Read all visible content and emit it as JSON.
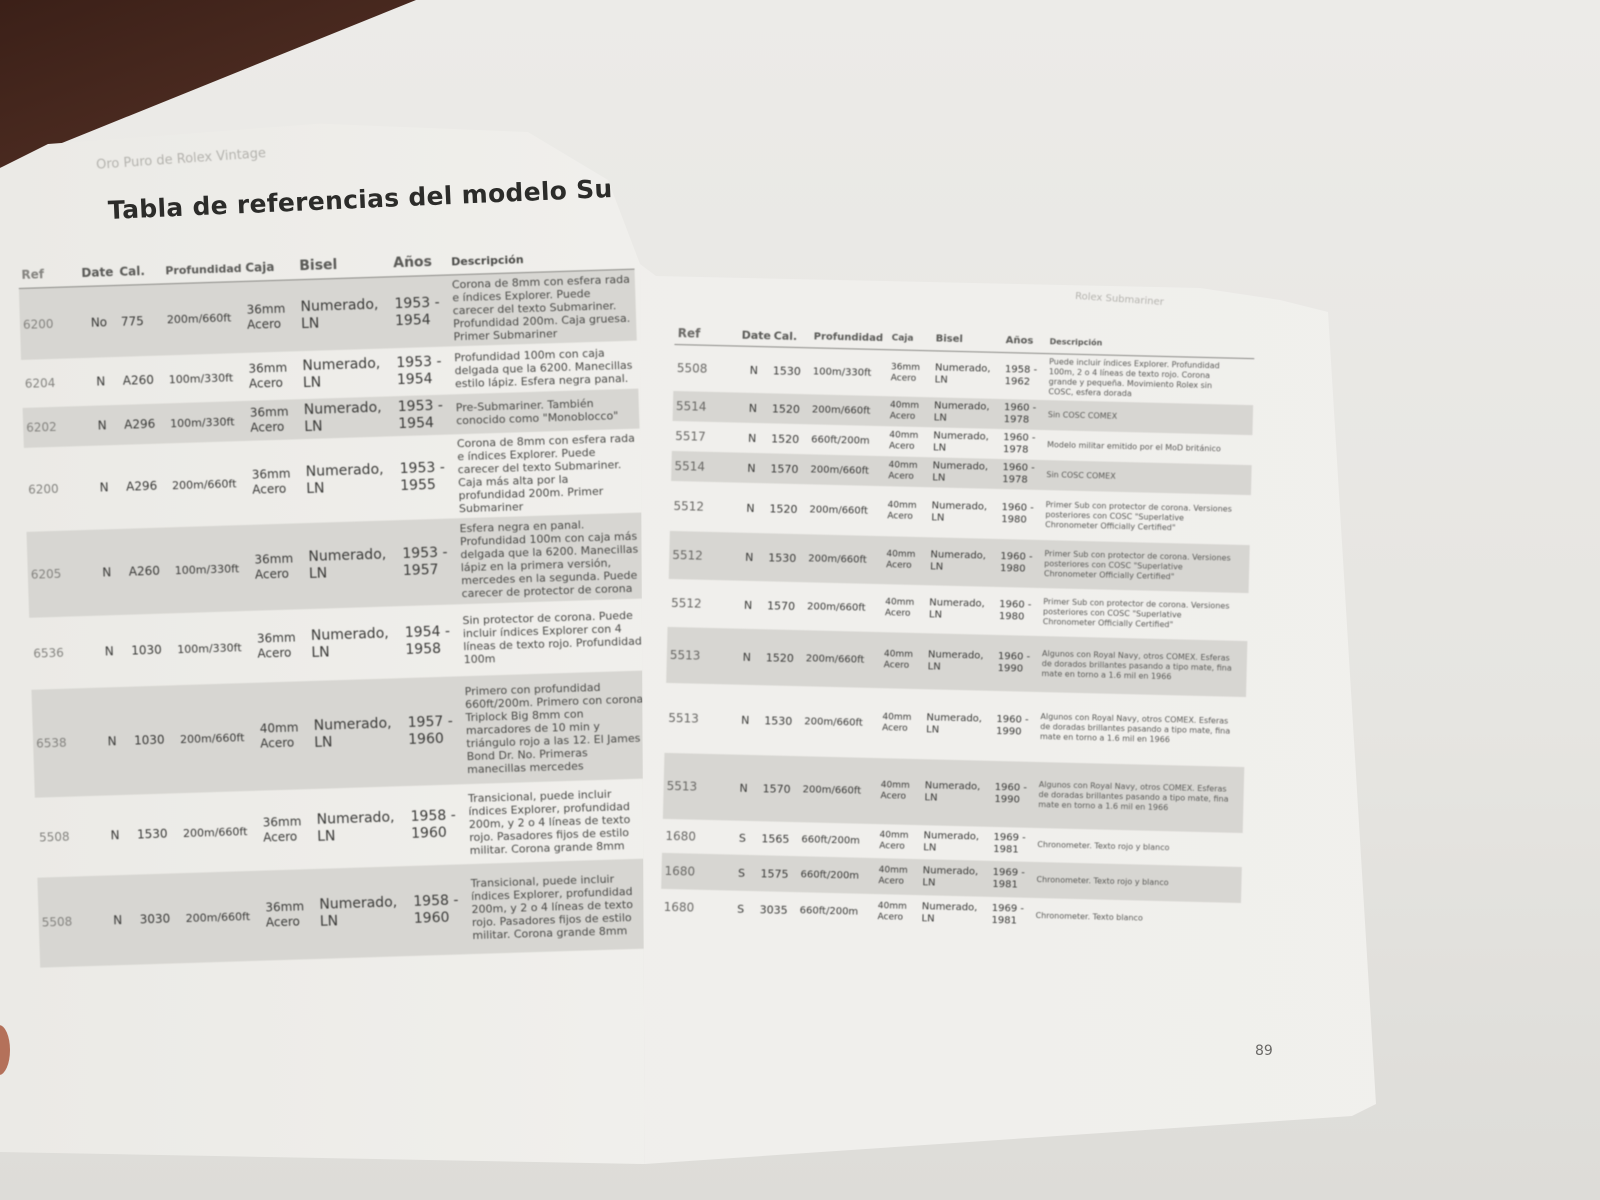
{
  "left_page": {
    "running_head": "Oro Puro de Rolex Vintage",
    "title": "Tabla de referencias del modelo Submariner",
    "headers": {
      "ref": "Ref",
      "date": "Date",
      "cal": "Cal.",
      "prof": "Profundidad",
      "caja": "Caja",
      "bisel": "Bisel",
      "anos": "Años",
      "desc": "Descripción"
    },
    "rows": [
      {
        "ref": "6200",
        "date": "No",
        "cal": "775",
        "prof": "200m/660ft",
        "caja": [
          "36mm",
          "Acero"
        ],
        "bisel": [
          "Numerado,",
          "LN"
        ],
        "anos": [
          "1953 -",
          "1954"
        ],
        "desc": "Corona de 8mm con esfera rada e índices Explorer. Puede carecer del texto Submariner. Profundidad 200m. Caja gruesa. Primer Submariner",
        "shade": true
      },
      {
        "ref": "6204",
        "date": "N",
        "cal": "A260",
        "prof": "100m/330ft",
        "caja": [
          "36mm",
          "Acero"
        ],
        "bisel": [
          "Numerado,",
          "LN"
        ],
        "anos": [
          "1953 -",
          "1954"
        ],
        "desc": "Profundidad 100m con caja delgada que la 6200. Manecillas estilo lápiz. Esfera negra panal.",
        "shade": false
      },
      {
        "ref": "6202",
        "date": "N",
        "cal": "A296",
        "prof": "100m/330ft",
        "caja": [
          "36mm",
          "Acero"
        ],
        "bisel": [
          "Numerado,",
          "LN"
        ],
        "anos": [
          "1953 -",
          "1954"
        ],
        "desc": "Pre-Submariner. También conocido como \"Monoblocco\"",
        "shade": true
      },
      {
        "ref": "6200",
        "date": "N",
        "cal": "A296",
        "prof": "200m/660ft",
        "caja": [
          "36mm",
          "Acero"
        ],
        "bisel": [
          "Numerado,",
          "LN"
        ],
        "anos": [
          "1953 -",
          "1955"
        ],
        "desc": "Corona de 8mm con esfera rada e índices Explorer. Puede carecer del texto Submariner. Caja más alta por la profundidad 200m. Primer Submariner",
        "shade": false
      },
      {
        "ref": "6205",
        "date": "N",
        "cal": "A260",
        "prof": "100m/330ft",
        "caja": [
          "36mm",
          "Acero"
        ],
        "bisel": [
          "Numerado,",
          "LN"
        ],
        "anos": [
          "1953 -",
          "1957"
        ],
        "desc": "Esfera negra en panal. Profundidad 100m con caja más delgada que la 6200. Manecillas lápiz en la primera versión, mercedes en la segunda. Puede carecer de protector de corona",
        "shade": true
      },
      {
        "ref": "6536",
        "date": "N",
        "cal": "1030",
        "prof": "100m/330ft",
        "caja": [
          "36mm",
          "Acero"
        ],
        "bisel": [
          "Numerado,",
          "LN"
        ],
        "anos": [
          "1954 -",
          "1958"
        ],
        "desc": "Sin protector de corona. Puede incluir índices Explorer con 4 líneas de texto rojo. Profundidad 100m",
        "shade": false
      },
      {
        "ref": "6538",
        "date": "N",
        "cal": "1030",
        "prof": "200m/660ft",
        "caja": [
          "40mm",
          "Acero"
        ],
        "bisel": [
          "Numerado,",
          "LN"
        ],
        "anos": [
          "1957 -",
          "1960"
        ],
        "desc": "Primero con profundidad 660ft/200m. Primero con corona Triplock Big 8mm con marcadores de 10 min y triángulo rojo a las 12. El James Bond Dr. No. Primeras manecillas mercedes",
        "shade": true
      },
      {
        "ref": "5508",
        "date": "N",
        "cal": "1530",
        "prof": "200m/660ft",
        "caja": [
          "36mm",
          "Acero"
        ],
        "bisel": [
          "Numerado,",
          "LN"
        ],
        "anos": [
          "1958 -",
          "1960"
        ],
        "desc": "Transicional, puede incluir índices Explorer, profundidad 200m, y 2 o 4 líneas de texto rojo. Pasadores fijos de estilo militar. Corona grande 8mm",
        "shade": false
      },
      {
        "ref": "5508",
        "date": "N",
        "cal": "3030",
        "prof": "200m/660ft",
        "caja": [
          "36mm",
          "Acero"
        ],
        "bisel": [
          "Numerado,",
          "LN"
        ],
        "anos": [
          "1958 -",
          "1960"
        ],
        "desc": "Transicional, puede incluir índices Explorer, profundidad 200m, y 2 o 4 líneas de texto rojo. Pasadores fijos de estilo militar. Corona grande 8mm",
        "shade": true
      }
    ]
  },
  "right_page": {
    "running_head": "Rolex Submariner",
    "headers": {
      "ref": "Ref",
      "date": "Date",
      "cal": "Cal.",
      "prof": "Profundidad",
      "caja": "Caja",
      "bisel": "Bisel",
      "anos": "Años",
      "desc": "Descripción"
    },
    "rows": [
      {
        "ref": "5508",
        "date": "N",
        "cal": "1530",
        "prof": "100m/330ft",
        "caja": [
          "36mm",
          "Acero"
        ],
        "bisel": [
          "Numerado,",
          "LN"
        ],
        "anos": [
          "1958 -",
          "1962"
        ],
        "desc": "Puede incluir índices Explorer. Profundidad 100m, 2 o 4 líneas de texto rojo. Corona grande y pequeña. Movimiento Rolex sin COSC, esfera dorada",
        "shade": false
      },
      {
        "ref": "5514",
        "date": "N",
        "cal": "1520",
        "prof": "200m/660ft",
        "caja": [
          "40mm",
          "Acero"
        ],
        "bisel": [
          "Numerado,",
          "LN"
        ],
        "anos": [
          "1960 -",
          "1978"
        ],
        "desc": "Sin COSC COMEX",
        "shade": true
      },
      {
        "ref": "5517",
        "date": "N",
        "cal": "1520",
        "prof": "660ft/200m",
        "caja": [
          "40mm",
          "Acero"
        ],
        "bisel": [
          "Numerado,",
          "LN"
        ],
        "anos": [
          "1960 -",
          "1978"
        ],
        "desc": "Modelo militar emitido por el MoD británico",
        "shade": false
      },
      {
        "ref": "5514",
        "date": "N",
        "cal": "1570",
        "prof": "200m/660ft",
        "caja": [
          "40mm",
          "Acero"
        ],
        "bisel": [
          "Numerado,",
          "LN"
        ],
        "anos": [
          "1960 -",
          "1978"
        ],
        "desc": "Sin COSC COMEX",
        "shade": true
      },
      {
        "ref": "5512",
        "date": "N",
        "cal": "1520",
        "prof": "200m/660ft",
        "caja": [
          "40mm",
          "Acero"
        ],
        "bisel": [
          "Numerado,",
          "LN"
        ],
        "anos": [
          "1960 -",
          "1980"
        ],
        "desc": "Primer Sub con protector de corona. Versiones posteriores con COSC \"Superlative Chronometer Officially Certified\"",
        "shade": false
      },
      {
        "ref": "5512",
        "date": "N",
        "cal": "1530",
        "prof": "200m/660ft",
        "caja": [
          "40mm",
          "Acero"
        ],
        "bisel": [
          "Numerado,",
          "LN"
        ],
        "anos": [
          "1960 -",
          "1980"
        ],
        "desc": "Primer Sub con protector de corona. Versiones posteriores con COSC \"Superlative Chronometer Officially Certified\"",
        "shade": true
      },
      {
        "ref": "5512",
        "date": "N",
        "cal": "1570",
        "prof": "200m/660ft",
        "caja": [
          "40mm",
          "Acero"
        ],
        "bisel": [
          "Numerado,",
          "LN"
        ],
        "anos": [
          "1960 -",
          "1980"
        ],
        "desc": "Primer Sub con protector de corona. Versiones posteriores con COSC \"Superlative Chronometer Officially Certified\"",
        "shade": false
      },
      {
        "ref": "5513",
        "date": "N",
        "cal": "1520",
        "prof": "200m/660ft",
        "caja": [
          "40mm",
          "Acero"
        ],
        "bisel": [
          "Numerado,",
          "LN"
        ],
        "anos": [
          "1960 -",
          "1990"
        ],
        "desc": "Algunos con Royal Navy, otros COMEX. Esferas de dorados brillantes pasando a tipo mate, fina mate en torno a 1.6 mil en 1966",
        "shade": true
      },
      {
        "ref": "5513",
        "date": "N",
        "cal": "1530",
        "prof": "200m/660ft",
        "caja": [
          "40mm",
          "Acero"
        ],
        "bisel": [
          "Numerado,",
          "LN"
        ],
        "anos": [
          "1960 -",
          "1990"
        ],
        "desc": "Algunos con Royal Navy, otros COMEX. Esferas de doradas brillantes pasando a tipo mate, fina mate en torno a 1.6 mil en 1966",
        "shade": false
      },
      {
        "ref": "5513",
        "date": "N",
        "cal": "1570",
        "prof": "200m/660ft",
        "caja": [
          "40mm",
          "Acero"
        ],
        "bisel": [
          "Numerado,",
          "LN"
        ],
        "anos": [
          "1960 -",
          "1990"
        ],
        "desc": "Algunos con Royal Navy, otros COMEX. Esferas de doradas brillantes pasando a tipo mate, fina mate en torno a 1.6 mil en 1966",
        "shade": true
      },
      {
        "ref": "1680",
        "date": "S",
        "cal": "1565",
        "prof": "660ft/200m",
        "caja": [
          "40mm",
          "Acero"
        ],
        "bisel": [
          "Numerado,",
          "LN"
        ],
        "anos": [
          "1969 -",
          "1981"
        ],
        "desc": "Chronometer. Texto rojo y blanco",
        "shade": false
      },
      {
        "ref": "1680",
        "date": "S",
        "cal": "1575",
        "prof": "660ft/200m",
        "caja": [
          "40mm",
          "Acero"
        ],
        "bisel": [
          "Numerado,",
          "LN"
        ],
        "anos": [
          "1969 -",
          "1981"
        ],
        "desc": "Chronometer. Texto rojo y blanco",
        "shade": true
      },
      {
        "ref": "1680",
        "date": "S",
        "cal": "3035",
        "prof": "660ft/200m",
        "caja": [
          "40mm",
          "Acero"
        ],
        "bisel": [
          "Numerado,",
          "LN"
        ],
        "anos": [
          "1969 -",
          "1981"
        ],
        "desc": "Chronometer. Texto blanco",
        "shade": false
      }
    ],
    "page_number": "89"
  }
}
